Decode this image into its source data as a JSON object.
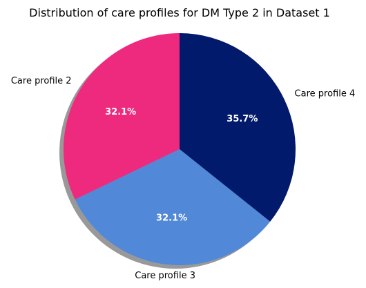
{
  "chart_data": {
    "type": "pie",
    "title": "Distribution of care profiles for DM Type 2 in Dataset 1",
    "slices": [
      {
        "name": "Care profile 4",
        "value": 35.7,
        "label": "35.7%",
        "color": "#021a6b"
      },
      {
        "name": "Care profile 3",
        "value": 32.1,
        "label": "32.1%",
        "color": "#5189d8"
      },
      {
        "name": "Care profile 2",
        "value": 32.1,
        "label": "32.1%",
        "color": "#ee2a7e"
      }
    ],
    "start_angle": "top",
    "direction": "clockwise",
    "shadow": true,
    "legend": "none"
  }
}
